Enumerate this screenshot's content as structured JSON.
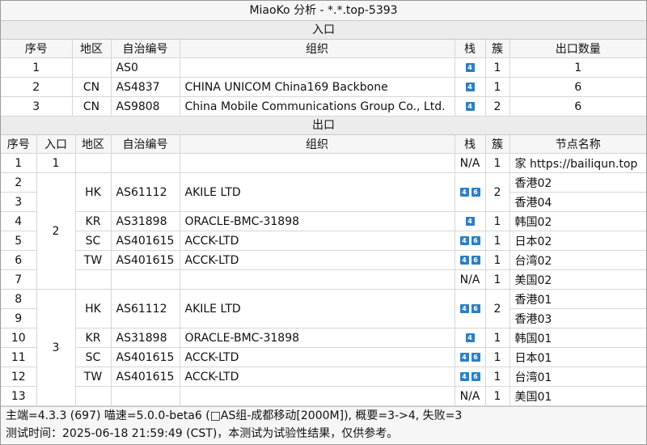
{
  "title": "MiaoKo 分析 - *.*.top-5393",
  "entry": {
    "section_label": "入口",
    "headers": [
      "序号",
      "地区",
      "自治编号",
      "组织",
      "栈",
      "簇",
      "出口数量"
    ],
    "rows": [
      {
        "no": "1",
        "region": "",
        "asn": "AS0",
        "org": "",
        "stack": [
          "4"
        ],
        "cluster": "1",
        "exits": "1"
      },
      {
        "no": "2",
        "region": "CN",
        "asn": "AS4837",
        "org": "CHINA UNICOM China169 Backbone",
        "stack": [
          "4"
        ],
        "cluster": "1",
        "exits": "6"
      },
      {
        "no": "3",
        "region": "CN",
        "asn": "AS9808",
        "org": "China Mobile Communications Group Co., Ltd.",
        "stack": [
          "4"
        ],
        "cluster": "2",
        "exits": "6"
      }
    ]
  },
  "exit": {
    "section_label": "出口",
    "headers": [
      "序号",
      "入口",
      "地区",
      "自治编号",
      "组织",
      "栈",
      "簇",
      "节点名称"
    ],
    "rows": [
      {
        "no": "1",
        "entry": "1",
        "region": "",
        "asn": "",
        "org": "",
        "stack_text": "N/A",
        "cluster": "1",
        "node": "家 https://bailiqun.top"
      },
      {
        "no": "2",
        "entry": "2",
        "region": "HK",
        "asn": "AS61112",
        "org": "AKILE LTD",
        "stack": [
          "4",
          "6"
        ],
        "cluster": "2",
        "node": "香港02"
      },
      {
        "no": "3",
        "node": "香港04"
      },
      {
        "no": "4",
        "region": "KR",
        "asn": "AS31898",
        "org": "ORACLE-BMC-31898",
        "stack": [
          "4"
        ],
        "cluster": "1",
        "node": "韩国02"
      },
      {
        "no": "5",
        "region": "SC",
        "asn": "AS401615",
        "org": "ACCK-LTD",
        "stack": [
          "4",
          "6"
        ],
        "cluster": "1",
        "node": "日本02"
      },
      {
        "no": "6",
        "region": "TW",
        "asn": "AS401615",
        "org": "ACCK-LTD",
        "stack": [
          "4",
          "6"
        ],
        "cluster": "1",
        "node": "台湾02"
      },
      {
        "no": "7",
        "region": "",
        "asn": "",
        "org": "",
        "stack_text": "N/A",
        "cluster": "1",
        "node": "美国02"
      },
      {
        "no": "8",
        "entry": "3",
        "region": "HK",
        "asn": "AS61112",
        "org": "AKILE LTD",
        "stack": [
          "4",
          "6"
        ],
        "cluster": "2",
        "node": "香港01"
      },
      {
        "no": "9",
        "node": "香港03"
      },
      {
        "no": "10",
        "region": "KR",
        "asn": "AS31898",
        "org": "ORACLE-BMC-31898",
        "stack": [
          "4"
        ],
        "cluster": "1",
        "node": "韩国01"
      },
      {
        "no": "11",
        "region": "SC",
        "asn": "AS401615",
        "org": "ACCK-LTD",
        "stack": [
          "4",
          "6"
        ],
        "cluster": "1",
        "node": "日本01"
      },
      {
        "no": "12",
        "region": "TW",
        "asn": "AS401615",
        "org": "ACCK-LTD",
        "stack": [
          "4",
          "6"
        ],
        "cluster": "1",
        "node": "台湾01"
      },
      {
        "no": "13",
        "region": "",
        "asn": "",
        "org": "",
        "stack_text": "N/A",
        "cluster": "1",
        "node": "美国01"
      }
    ]
  },
  "footer": {
    "line1": "主端=4.3.3 (697) 喵速=5.0.0-beta6 (□AS组-成都移动[2000M]), 概要=3->4, 失败=3",
    "line2": "测试时间：2025-06-18 21:59:49 (CST)，本测试为试验性结果，仅供参考。"
  },
  "colors": {
    "badge": "#2e7fbf"
  }
}
